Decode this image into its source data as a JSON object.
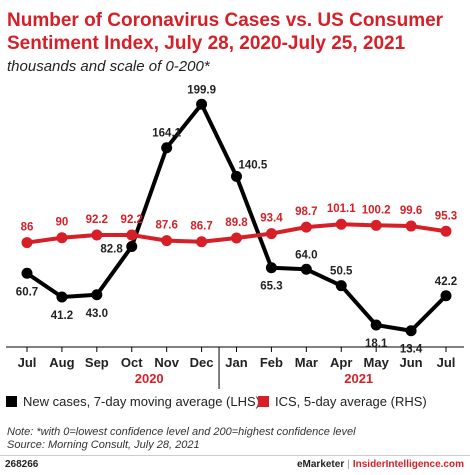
{
  "title": "Number of Coronavirus Cases vs. US Consumer Sentiment Index, July 28, 2020-July 25, 2021",
  "subtitle": "thousands and scale of 0-200*",
  "chart_data": {
    "type": "line",
    "categories": [
      "Jul",
      "Aug",
      "Sep",
      "Oct",
      "Nov",
      "Dec",
      "Jan",
      "Feb",
      "Mar",
      "Apr",
      "May",
      "Jun",
      "Jul"
    ],
    "year_labels": [
      {
        "label": "2020",
        "category": 3.5
      },
      {
        "label": "2021",
        "category": 9.5
      }
    ],
    "year_divider_between": [
      5,
      6
    ],
    "ylim": [
      0,
      210
    ],
    "series": [
      {
        "name": "New cases, 7-day moving average (LHS)",
        "color": "#000000",
        "x": [
          0,
          1,
          2,
          3,
          4,
          5,
          6,
          7,
          8,
          9,
          10,
          11,
          12
        ],
        "values": [
          60.7,
          41.2,
          43.0,
          82.8,
          164.1,
          199.9,
          140.5,
          65.3,
          64.0,
          50.5,
          18.1,
          13.4,
          42.2
        ],
        "labels": [
          "60.7",
          "41.2",
          "43.0",
          "82.8",
          "164.1",
          "199.9",
          "140.5",
          "65.3",
          "64.0",
          "50.5",
          "18.1",
          "13.4",
          "42.2"
        ]
      },
      {
        "name": "ICS, 5-day average (RHS)",
        "color": "#d61f26",
        "x": [
          0,
          1,
          2,
          3,
          4,
          5,
          6,
          7,
          8,
          9,
          10,
          11,
          12
        ],
        "values": [
          86,
          90,
          92.2,
          92.2,
          87.6,
          86.7,
          89.8,
          93.4,
          98.7,
          101.1,
          100.2,
          99.6,
          95.3
        ],
        "labels": [
          "86",
          "90",
          "92.2",
          "92.2",
          "87.6",
          "86.7",
          "89.8",
          "93.4",
          "98.7",
          "101.1",
          "100.2",
          "99.6",
          "95.3"
        ]
      }
    ],
    "grid": false,
    "legend_position": "bottom"
  },
  "legend": [
    {
      "label": "New cases, 7-day moving average (LHS)",
      "color": "#000000"
    },
    {
      "label": "ICS, 5-day average (RHS)",
      "color": "#d61f26"
    }
  ],
  "note": "Note: *with 0=lowest confidence level and 200=highest confidence level",
  "source": "Source: Morning Consult, July 28, 2021",
  "footer": {
    "chart_id": "268266",
    "brand_left": "eMarketer",
    "separator": "|",
    "brand_right": "InsiderIntelligence.com"
  }
}
